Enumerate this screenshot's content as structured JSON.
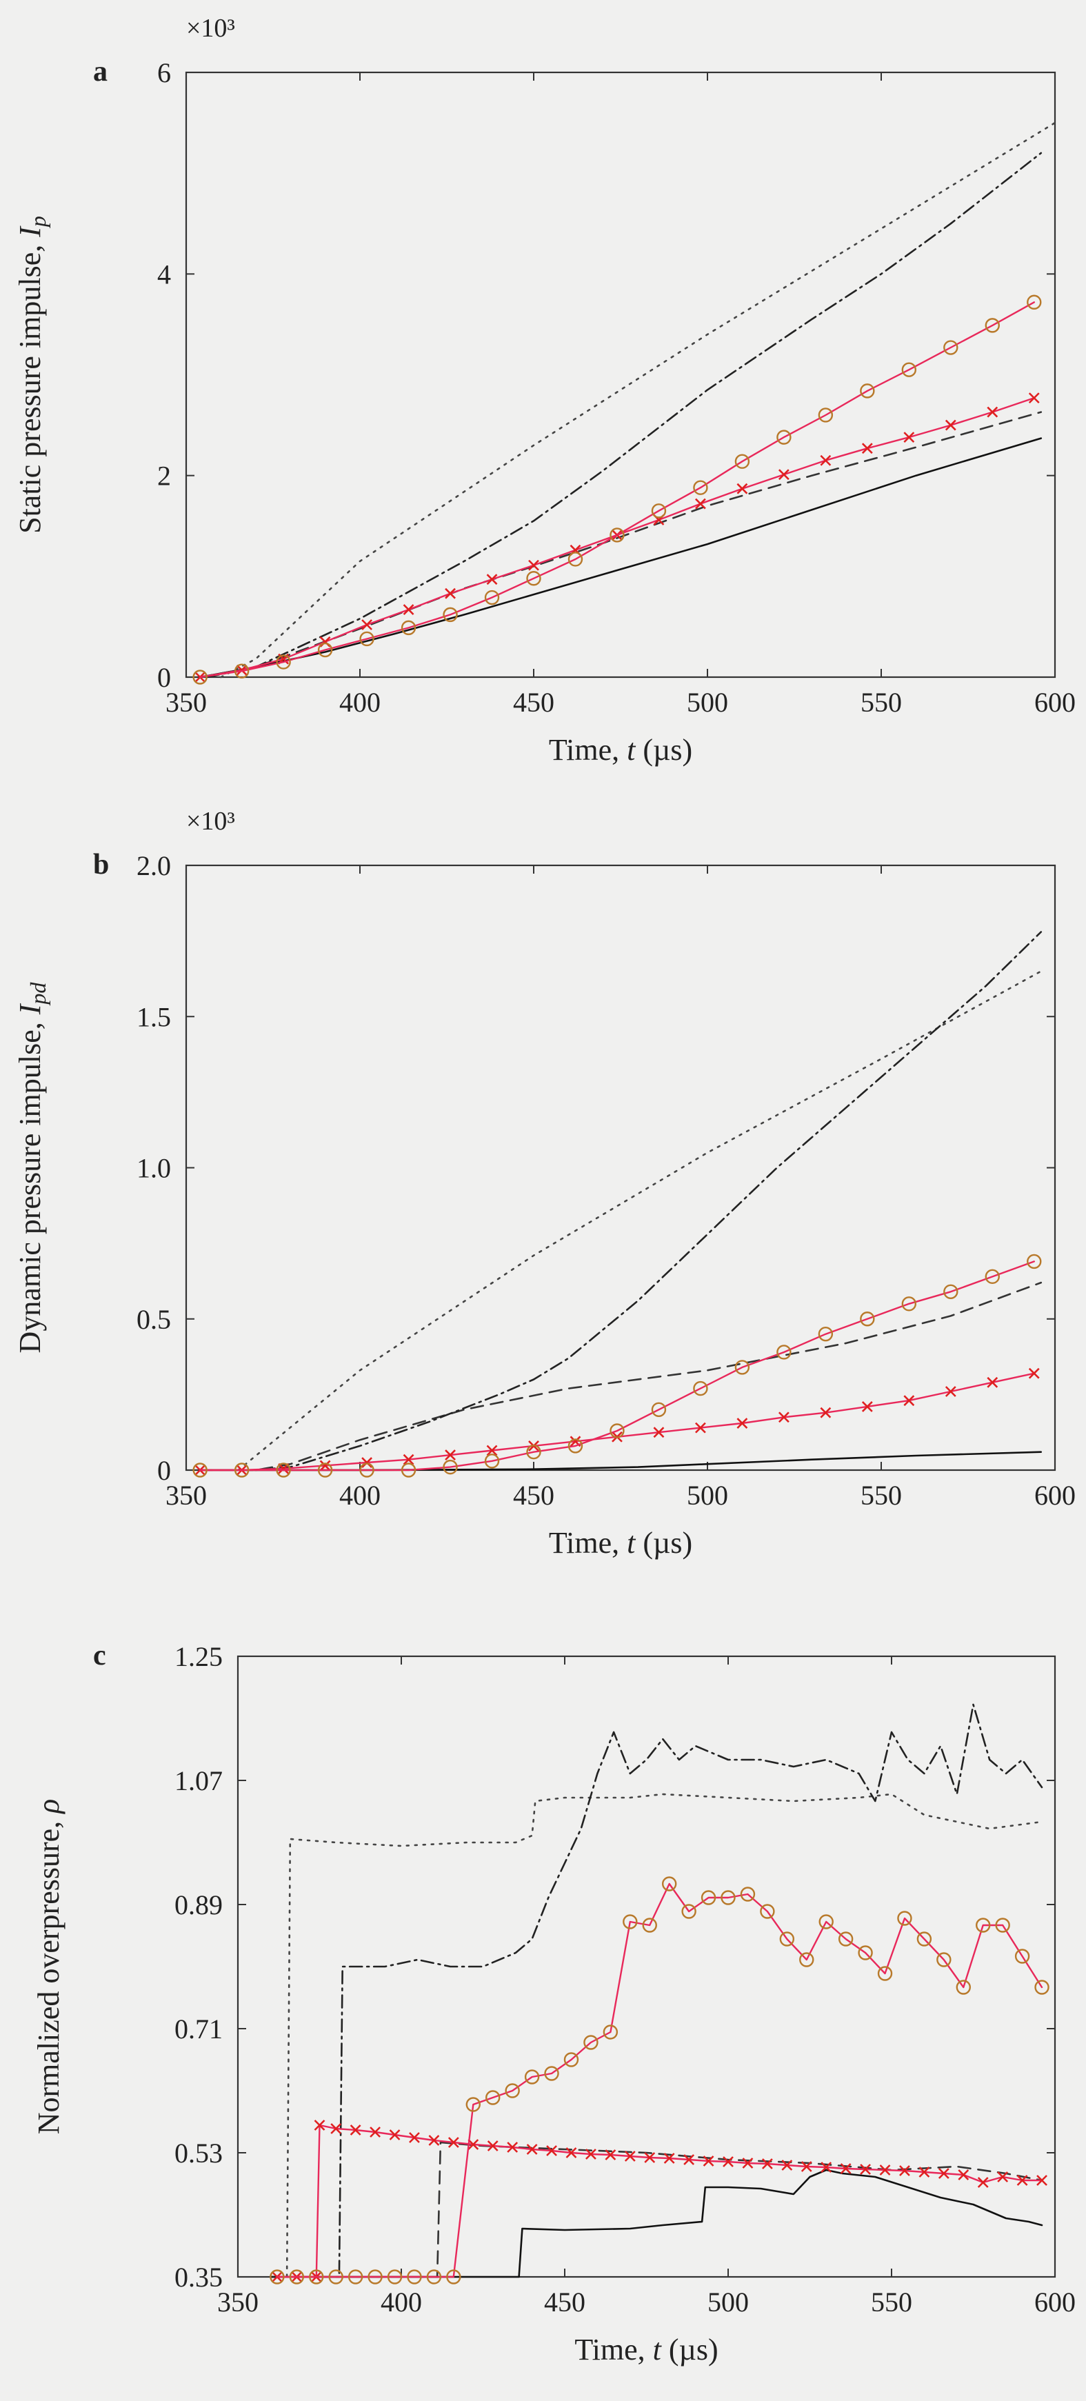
{
  "chart_data": [
    {
      "type": "line",
      "panel_label": "a",
      "multiplier": "×10³",
      "xlabel": "Time, t (µs)",
      "ylabel": "Static pressure impulse, I_p",
      "xlim": [
        350,
        600
      ],
      "ylim": [
        0,
        6
      ],
      "xticks": [
        "350",
        "400",
        "450",
        "500",
        "550",
        "600"
      ],
      "yticks": [
        "0",
        "2",
        "4",
        "6"
      ],
      "series": [
        {
          "style": "solid",
          "color": "#111111",
          "x": [
            354,
            370,
            390,
            410,
            430,
            450,
            470,
            500,
            530,
            560,
            596
          ],
          "y": [
            0,
            0.1,
            0.25,
            0.43,
            0.62,
            0.82,
            1.02,
            1.32,
            1.66,
            2.0,
            2.37
          ]
        },
        {
          "style": "dashed",
          "color": "#333333",
          "x": [
            354,
            370,
            400,
            430,
            450,
            470,
            500,
            530,
            560,
            596
          ],
          "y": [
            0,
            0.1,
            0.48,
            0.88,
            1.1,
            1.33,
            1.7,
            2.0,
            2.28,
            2.63
          ]
        },
        {
          "style": "dotted",
          "color": "#444444",
          "x": [
            360,
            370,
            400,
            450,
            500,
            550,
            600
          ],
          "y": [
            0,
            0.18,
            1.15,
            2.3,
            3.4,
            4.45,
            5.5
          ]
        },
        {
          "style": "dashdot",
          "color": "#222222",
          "x": [
            356,
            370,
            400,
            430,
            450,
            470,
            500,
            530,
            550,
            570,
            596
          ],
          "y": [
            0,
            0.1,
            0.58,
            1.15,
            1.55,
            2.05,
            2.85,
            3.55,
            4.0,
            4.5,
            5.2
          ]
        },
        {
          "style": "solid",
          "color": "#e8285a",
          "marker": "x",
          "markerColor": "#e02020",
          "x": [
            354,
            366,
            378,
            390,
            402,
            414,
            426,
            438,
            450,
            462,
            474,
            486,
            498,
            510,
            522,
            534,
            546,
            558,
            570,
            582,
            594
          ],
          "y": [
            0,
            0.07,
            0.18,
            0.35,
            0.52,
            0.67,
            0.83,
            0.97,
            1.11,
            1.26,
            1.41,
            1.56,
            1.72,
            1.87,
            2.01,
            2.15,
            2.27,
            2.38,
            2.5,
            2.63,
            2.77
          ]
        },
        {
          "style": "solid",
          "color": "#e8285a",
          "marker": "o",
          "markerColor": "#b8792a",
          "x": [
            354,
            366,
            378,
            390,
            402,
            414,
            426,
            438,
            450,
            462,
            474,
            486,
            498,
            510,
            522,
            534,
            546,
            558,
            570,
            582,
            594
          ],
          "y": [
            0,
            0.06,
            0.15,
            0.27,
            0.38,
            0.49,
            0.62,
            0.79,
            0.98,
            1.17,
            1.41,
            1.65,
            1.88,
            2.14,
            2.38,
            2.6,
            2.84,
            3.05,
            3.27,
            3.49,
            3.72
          ]
        }
      ]
    },
    {
      "type": "line",
      "panel_label": "b",
      "multiplier": "×10³",
      "xlabel": "Time, t (µs)",
      "ylabel": "Dynamic pressure impulse, I_pd",
      "xlim": [
        350,
        600
      ],
      "ylim": [
        0,
        2.0
      ],
      "xticks": [
        "350",
        "400",
        "450",
        "500",
        "550",
        "600"
      ],
      "yticks": [
        "0",
        "0.5",
        "1.0",
        "1.5",
        "2.0"
      ],
      "series": [
        {
          "style": "solid",
          "color": "#111111",
          "x": [
            354,
            400,
            450,
            480,
            500,
            530,
            560,
            596
          ],
          "y": [
            0,
            0,
            0.003,
            0.01,
            0.02,
            0.035,
            0.048,
            0.06
          ]
        },
        {
          "style": "dashed",
          "color": "#333333",
          "x": [
            354,
            370,
            380,
            400,
            430,
            460,
            500,
            540,
            570,
            596
          ],
          "y": [
            0,
            0,
            0.02,
            0.1,
            0.2,
            0.27,
            0.33,
            0.42,
            0.51,
            0.62
          ]
        },
        {
          "style": "dotted",
          "color": "#444444",
          "x": [
            365,
            400,
            450,
            500,
            550,
            596
          ],
          "y": [
            0,
            0.33,
            0.71,
            1.05,
            1.36,
            1.65
          ]
        },
        {
          "style": "dashdot",
          "color": "#222222",
          "x": [
            370,
            380,
            400,
            420,
            440,
            450,
            460,
            480,
            500,
            520,
            540,
            560,
            580,
            596
          ],
          "y": [
            0,
            0.01,
            0.08,
            0.16,
            0.25,
            0.3,
            0.37,
            0.56,
            0.78,
            1.0,
            1.2,
            1.4,
            1.6,
            1.78
          ]
        },
        {
          "style": "solid",
          "color": "#e8285a",
          "marker": "x",
          "markerColor": "#e02020",
          "x": [
            354,
            366,
            378,
            390,
            402,
            414,
            426,
            438,
            450,
            462,
            474,
            486,
            498,
            510,
            522,
            534,
            546,
            558,
            570,
            582,
            594
          ],
          "y": [
            0,
            0,
            0.005,
            0.015,
            0.025,
            0.035,
            0.05,
            0.065,
            0.08,
            0.095,
            0.11,
            0.125,
            0.14,
            0.155,
            0.175,
            0.19,
            0.21,
            0.23,
            0.26,
            0.29,
            0.32
          ]
        },
        {
          "style": "solid",
          "color": "#e8285a",
          "marker": "o",
          "markerColor": "#b8792a",
          "x": [
            354,
            366,
            378,
            390,
            402,
            414,
            426,
            438,
            450,
            462,
            474,
            486,
            498,
            510,
            522,
            534,
            546,
            558,
            570,
            582,
            594
          ],
          "y": [
            0,
            0,
            0,
            0,
            0,
            0,
            0.01,
            0.03,
            0.06,
            0.08,
            0.13,
            0.2,
            0.27,
            0.34,
            0.39,
            0.45,
            0.5,
            0.55,
            0.59,
            0.64,
            0.69
          ]
        }
      ]
    },
    {
      "type": "line",
      "panel_label": "c",
      "multiplier": "",
      "xlabel": "Time, t (µs)",
      "ylabel": "Normalized overpressure, ρ",
      "xlim": [
        350,
        600
      ],
      "ylim": [
        0.35,
        1.25
      ],
      "xticks": [
        "350",
        "400",
        "450",
        "500",
        "550",
        "600"
      ],
      "yticks": [
        "0.35",
        "0.53",
        "0.71",
        "0.89",
        "1.07",
        "1.25"
      ],
      "series": [
        {
          "style": "solid",
          "color": "#111111",
          "x": [
            360,
            436,
            437,
            450,
            470,
            480,
            492,
            493,
            500,
            510,
            520,
            525,
            530,
            535,
            545,
            555,
            565,
            575,
            585,
            592,
            596
          ],
          "y": [
            0.35,
            0.35,
            0.42,
            0.418,
            0.42,
            0.425,
            0.43,
            0.48,
            0.48,
            0.478,
            0.47,
            0.495,
            0.505,
            0.5,
            0.495,
            0.48,
            0.465,
            0.455,
            0.435,
            0.43,
            0.425
          ]
        },
        {
          "style": "dashed",
          "color": "#333333",
          "x": [
            360,
            411,
            412,
            425,
            450,
            475,
            500,
            525,
            550,
            570,
            585,
            596
          ],
          "y": [
            0.35,
            0.35,
            0.545,
            0.54,
            0.535,
            0.53,
            0.52,
            0.515,
            0.505,
            0.51,
            0.5,
            0.49
          ]
        },
        {
          "style": "dotted",
          "color": "#444444",
          "x": [
            360,
            365,
            366,
            380,
            400,
            420,
            435,
            440,
            441,
            450,
            470,
            480,
            500,
            520,
            540,
            550,
            560,
            580,
            596
          ],
          "y": [
            0.35,
            0.35,
            0.985,
            0.98,
            0.975,
            0.98,
            0.98,
            0.99,
            1.04,
            1.045,
            1.045,
            1.05,
            1.045,
            1.04,
            1.045,
            1.05,
            1.02,
            1.0,
            1.01
          ]
        },
        {
          "style": "dashdot",
          "color": "#222222",
          "x": [
            360,
            381,
            382,
            395,
            405,
            415,
            425,
            435,
            440,
            445,
            450,
            455,
            460,
            465,
            470,
            475,
            480,
            485,
            490,
            500,
            510,
            520,
            530,
            540,
            545,
            550,
            555,
            560,
            565,
            570,
            575,
            580,
            585,
            590,
            596
          ],
          "y": [
            0.35,
            0.35,
            0.8,
            0.8,
            0.81,
            0.8,
            0.8,
            0.82,
            0.84,
            0.9,
            0.95,
            1.0,
            1.08,
            1.14,
            1.08,
            1.1,
            1.13,
            1.1,
            1.12,
            1.1,
            1.1,
            1.09,
            1.1,
            1.08,
            1.04,
            1.14,
            1.1,
            1.08,
            1.12,
            1.05,
            1.18,
            1.1,
            1.08,
            1.1,
            1.06
          ]
        },
        {
          "style": "solid",
          "color": "#e8285a",
          "marker": "x",
          "markerColor": "#e02020",
          "x": [
            362,
            368,
            374,
            375,
            380,
            386,
            392,
            398,
            404,
            410,
            416,
            422,
            428,
            434,
            440,
            446,
            452,
            458,
            464,
            470,
            476,
            482,
            488,
            494,
            500,
            506,
            512,
            518,
            524,
            530,
            536,
            542,
            548,
            554,
            560,
            566,
            572,
            578,
            584,
            590,
            596
          ],
          "y": [
            0.35,
            0.35,
            0.35,
            0.57,
            0.565,
            0.563,
            0.56,
            0.556,
            0.552,
            0.548,
            0.545,
            0.542,
            0.54,
            0.538,
            0.535,
            0.533,
            0.53,
            0.528,
            0.527,
            0.525,
            0.523,
            0.522,
            0.52,
            0.518,
            0.517,
            0.515,
            0.514,
            0.512,
            0.51,
            0.509,
            0.507,
            0.506,
            0.505,
            0.504,
            0.502,
            0.5,
            0.498,
            0.487,
            0.495,
            0.49,
            0.49
          ]
        },
        {
          "style": "solid",
          "color": "#e8285a",
          "marker": "o",
          "markerColor": "#b8792a",
          "x": [
            362,
            368,
            374,
            380,
            386,
            392,
            398,
            404,
            410,
            416,
            422,
            428,
            434,
            440,
            446,
            452,
            458,
            464,
            470,
            476,
            482,
            488,
            494,
            500,
            506,
            512,
            518,
            524,
            530,
            536,
            542,
            548,
            554,
            560,
            566,
            572,
            578,
            584,
            590,
            596
          ],
          "y": [
            0.35,
            0.35,
            0.35,
            0.35,
            0.35,
            0.35,
            0.35,
            0.35,
            0.35,
            0.35,
            0.6,
            0.61,
            0.62,
            0.64,
            0.645,
            0.665,
            0.69,
            0.705,
            0.865,
            0.86,
            0.92,
            0.88,
            0.9,
            0.9,
            0.905,
            0.88,
            0.84,
            0.81,
            0.865,
            0.84,
            0.82,
            0.79,
            0.87,
            0.84,
            0.81,
            0.77,
            0.86,
            0.86,
            0.815,
            0.77
          ]
        }
      ]
    }
  ]
}
